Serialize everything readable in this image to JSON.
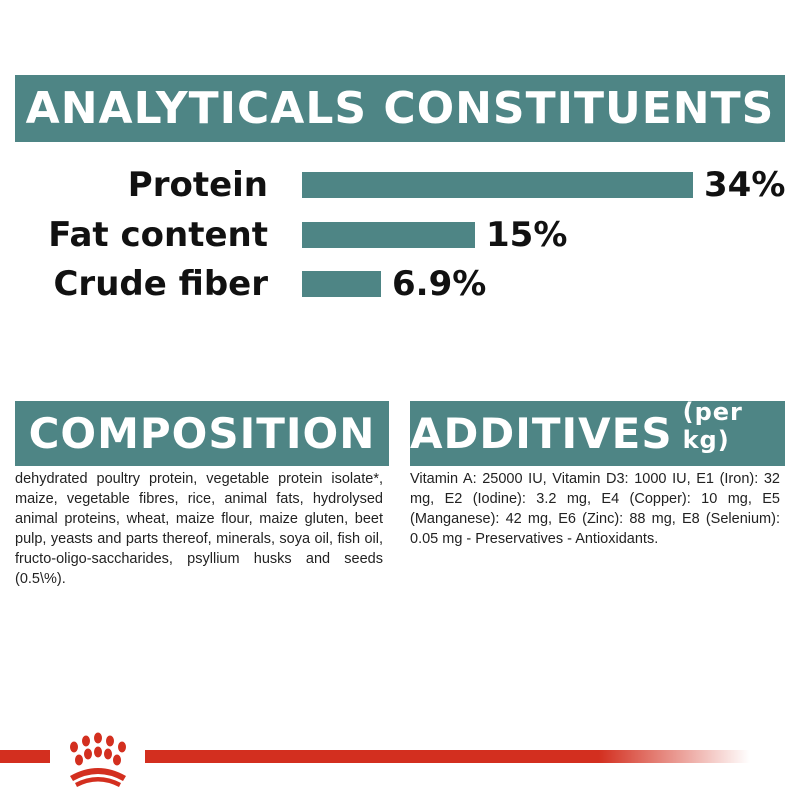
{
  "header": {
    "title": "ANALYTICALS CONSTITUENTS"
  },
  "chart_data": {
    "type": "bar",
    "orientation": "horizontal",
    "title": "ANALYTICALS CONSTITUENTS",
    "categories": [
      "Protein",
      "Fat content",
      "Crude fiber"
    ],
    "values": [
      34,
      15,
      6.9
    ],
    "value_labels": [
      "34%",
      "15%",
      "6.9%"
    ],
    "unit": "%",
    "xlim": [
      0,
      34
    ],
    "grid": false,
    "bar_color": "#4e8585"
  },
  "composition": {
    "title": "COMPOSITION",
    "text": "dehydrated poultry protein, vegetable protein isolate*, maize, vegetable fibres, rice, animal fats, hydrolysed animal proteins, wheat, maize flour, maize gluten, beet pulp, yeasts and parts thereof, minerals, soya oil, fish oil, fructo-oligo-saccharides, psyllium husks and seeds (0.5\\%)."
  },
  "additives": {
    "title": "ADDITIVES",
    "title_suffix": "(per kg)",
    "text": "Vitamin A: 25000 IU, Vitamin D3: 1000 IU, E1 (Iron): 32 mg, E2 (Iodine): 3.2 mg, E4 (Copper): 10 mg, E5 (Manganese): 42 mg, E6 (Zinc): 88 mg, E8 (Selenium): 0.05 mg - Preservatives - Antioxidants."
  },
  "brand": {
    "logo": "royal-canin-crown-icon",
    "color": "#d32f1f"
  }
}
